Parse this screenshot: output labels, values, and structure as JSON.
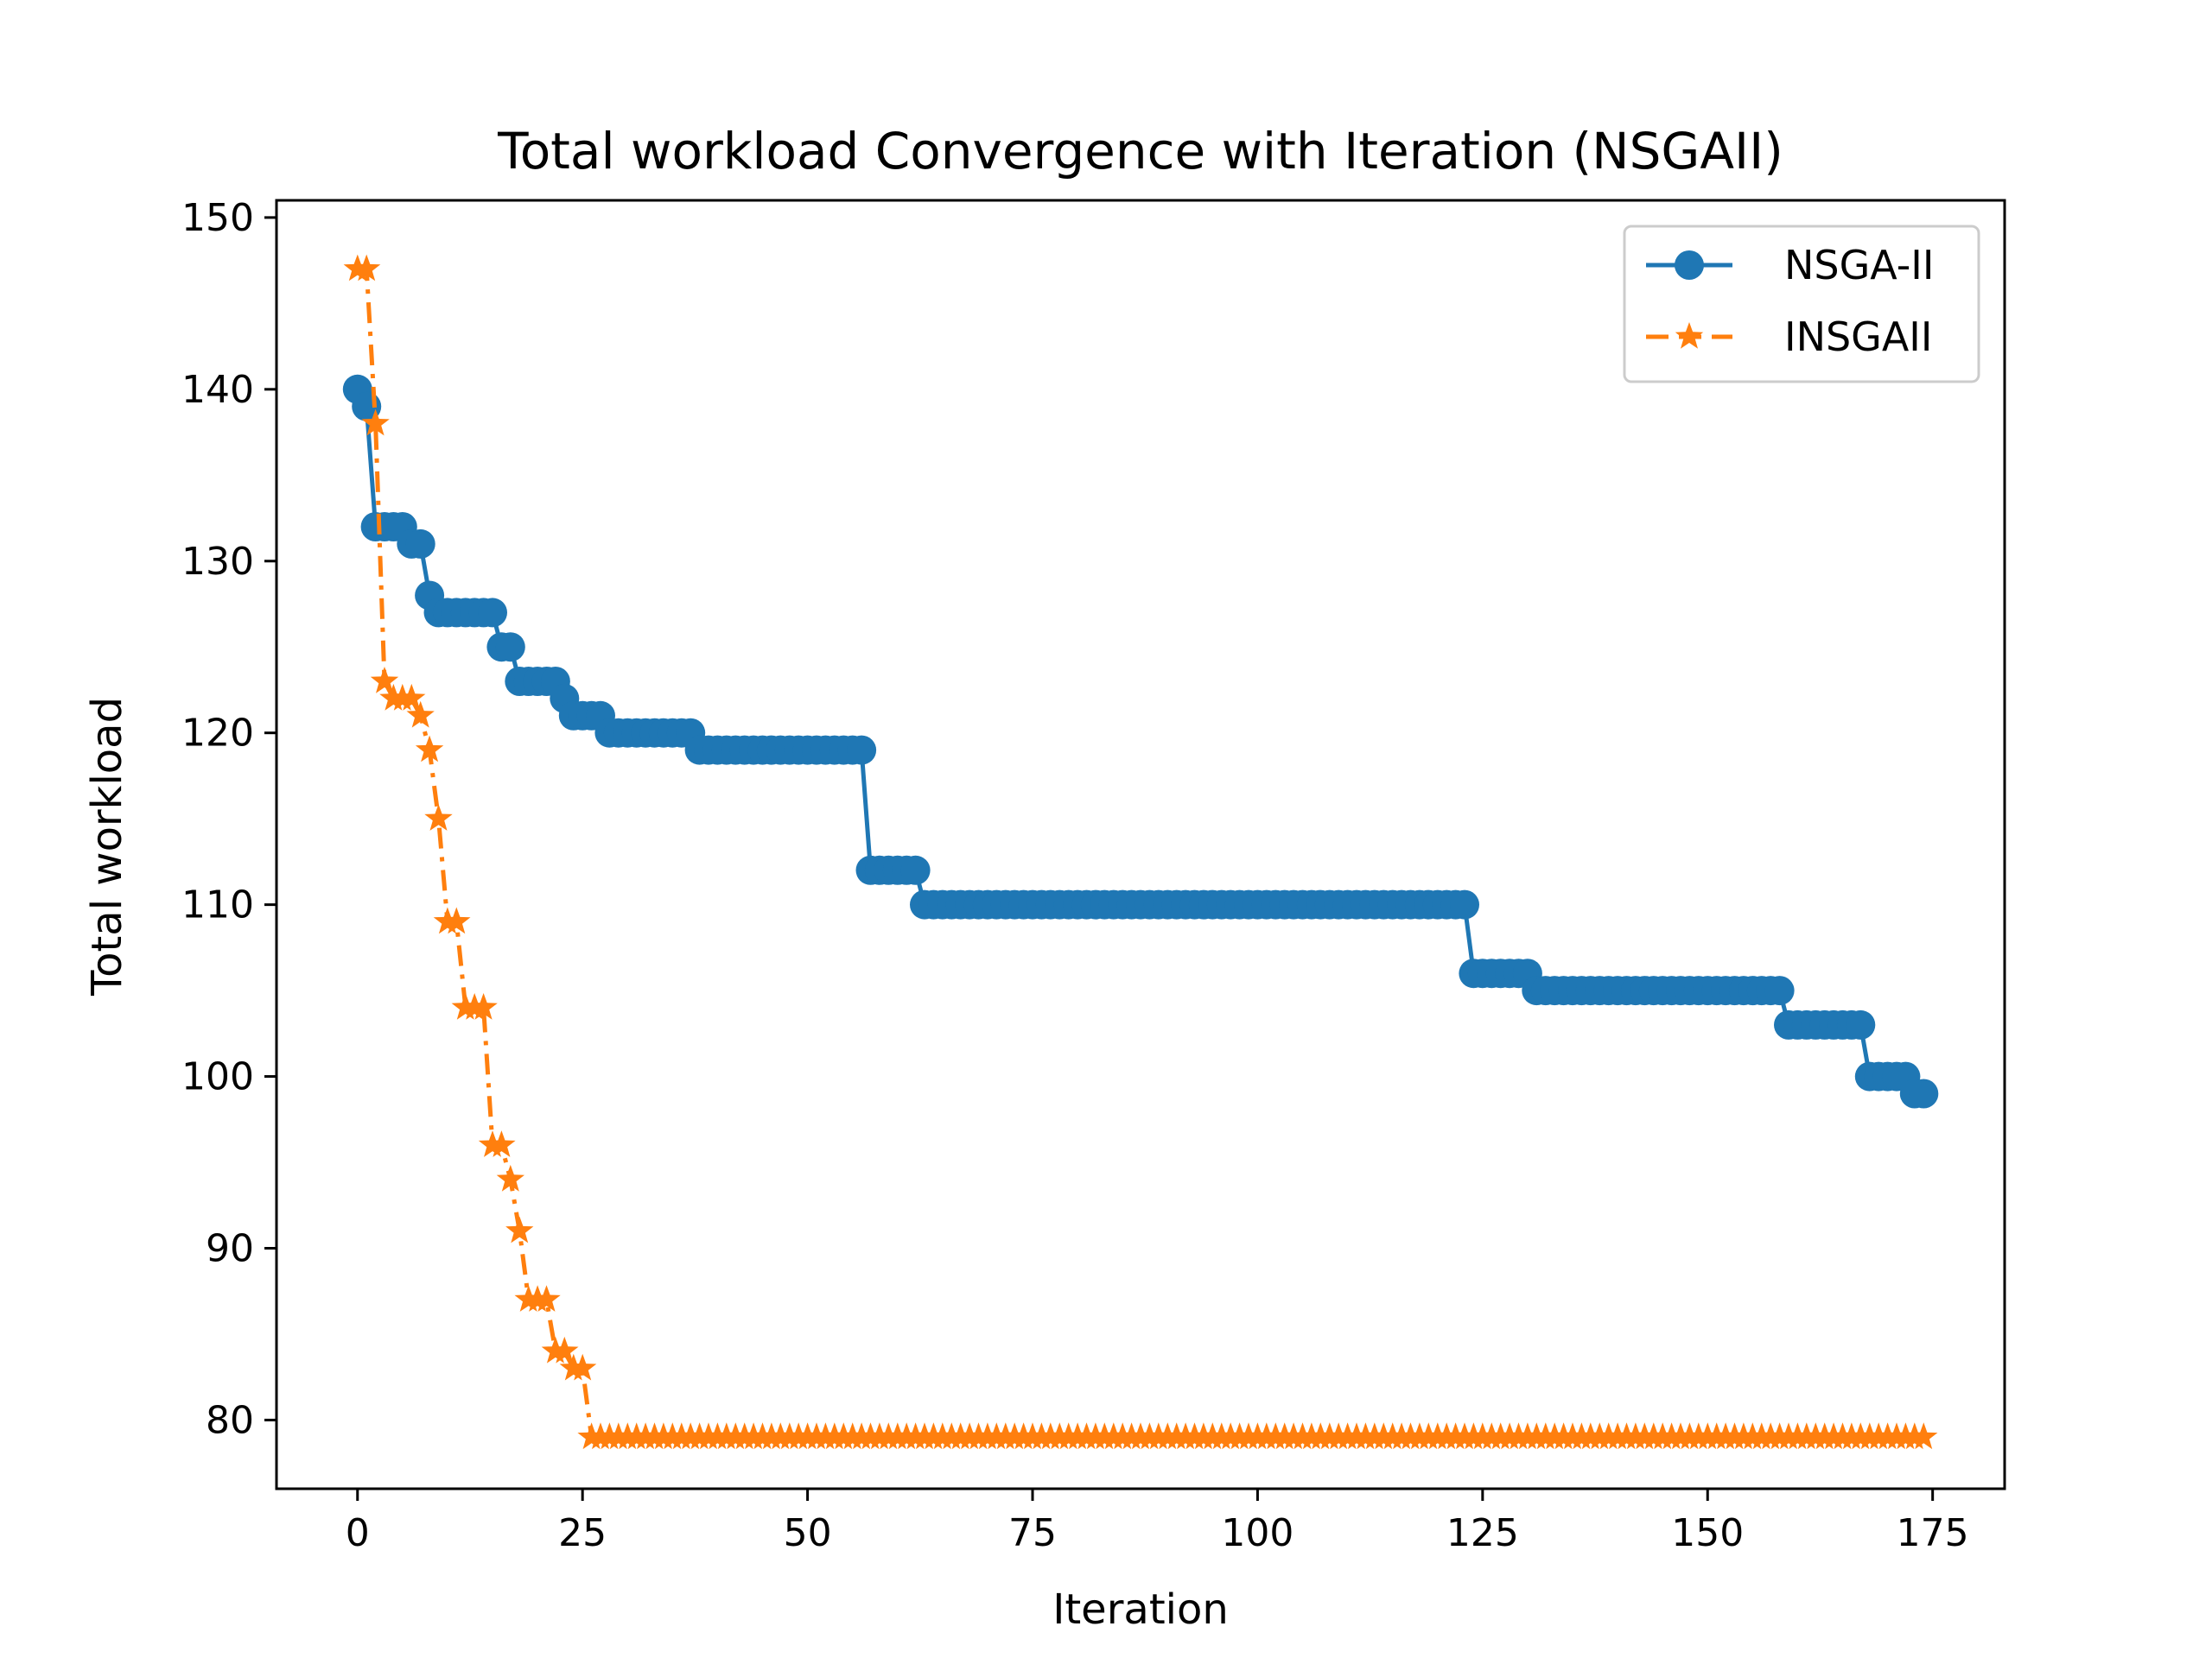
{
  "chart_data": {
    "type": "line",
    "title": "Total workload Convergence with Iteration (NSGAII)",
    "xlabel": "Iteration",
    "ylabel": "Total workload",
    "xlim": [
      -9,
      183
    ],
    "ylim": [
      76,
      151
    ],
    "xticks": [
      0,
      25,
      50,
      75,
      100,
      125,
      150,
      175
    ],
    "yticks": [
      80,
      90,
      100,
      110,
      120,
      130,
      140,
      150
    ],
    "grid": false,
    "legend_position": "top-right",
    "colors": {
      "nsga2": "#1f77b4",
      "insgaii": "#ff7f0e"
    },
    "series": [
      {
        "name": "NSGA-II",
        "color": "#1f77b4",
        "marker": "circle",
        "line_style": "solid",
        "steps": [
          [
            0,
            140
          ],
          [
            1,
            139
          ],
          [
            2,
            132
          ],
          [
            6,
            131
          ],
          [
            8,
            128
          ],
          [
            9,
            127
          ],
          [
            16,
            125
          ],
          [
            18,
            123
          ],
          [
            23,
            122
          ],
          [
            24,
            121
          ],
          [
            28,
            120
          ],
          [
            38,
            119
          ],
          [
            57,
            112
          ],
          [
            63,
            110
          ],
          [
            124,
            106
          ],
          [
            131,
            105
          ],
          [
            159,
            103
          ],
          [
            168,
            100
          ],
          [
            173,
            99
          ]
        ],
        "last_x": 174
      },
      {
        "name": "INSGAII",
        "color": "#ff7f0e",
        "marker": "star",
        "line_style": "dashdot",
        "points": [
          [
            0,
            147
          ],
          [
            1,
            147
          ],
          [
            2,
            138
          ],
          [
            3,
            123
          ],
          [
            4,
            122
          ],
          [
            5,
            122
          ],
          [
            6,
            122
          ],
          [
            7,
            121
          ],
          [
            8,
            119
          ],
          [
            9,
            115
          ],
          [
            10,
            109
          ],
          [
            11,
            109
          ],
          [
            12,
            104
          ],
          [
            13,
            104
          ],
          [
            14,
            104
          ],
          [
            15,
            96
          ],
          [
            16,
            96
          ],
          [
            17,
            94
          ],
          [
            18,
            91
          ],
          [
            19,
            87
          ],
          [
            20,
            87
          ],
          [
            21,
            87
          ],
          [
            22,
            84
          ],
          [
            23,
            84
          ],
          [
            24,
            83
          ],
          [
            25,
            83
          ]
        ],
        "flat_value": 79,
        "flat_from": 26,
        "last_x": 174
      }
    ]
  }
}
